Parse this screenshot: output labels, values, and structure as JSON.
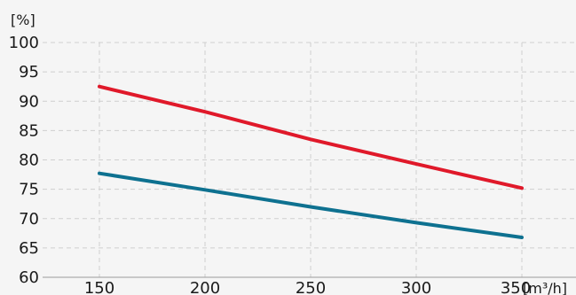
{
  "chart_data": {
    "type": "line",
    "title": "",
    "ylabel": "[%]",
    "xlabel": "[m³/h]",
    "x": [
      150,
      200,
      250,
      300,
      350
    ],
    "xticks": [
      150,
      200,
      250,
      300,
      350
    ],
    "yticks": [
      60,
      65,
      70,
      75,
      80,
      85,
      90,
      95,
      100
    ],
    "xlim": [
      100,
      380
    ],
    "ylim": [
      60,
      100
    ],
    "grid": true,
    "series": [
      {
        "color": "#e0192a",
        "values": [
          92.5,
          88.2,
          83.5,
          79.3,
          75.2
        ]
      },
      {
        "color": "#0e7190",
        "values": [
          77.7,
          74.9,
          72.0,
          69.3,
          66.8
        ]
      }
    ]
  }
}
